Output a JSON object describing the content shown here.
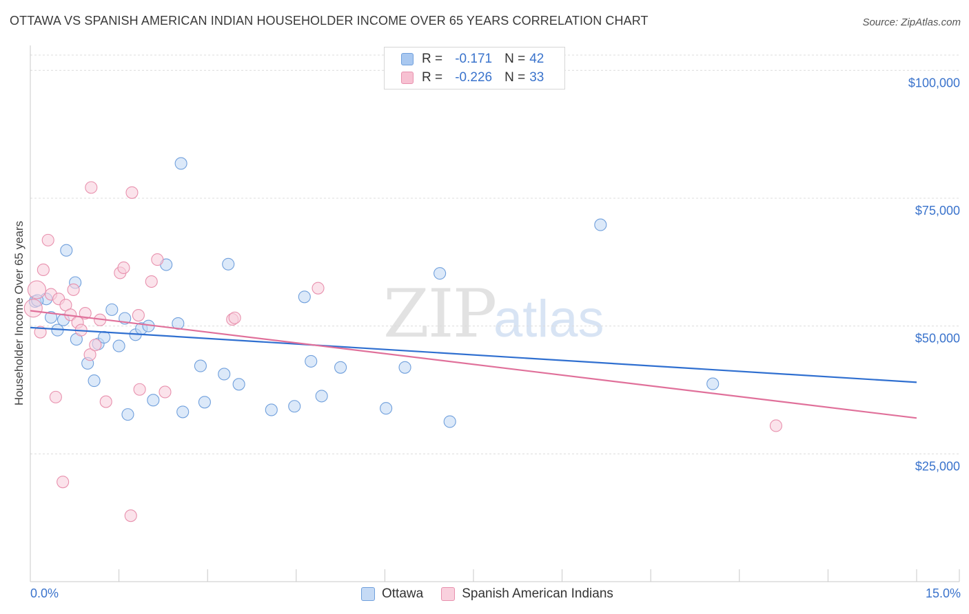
{
  "title": "OTTAWA VS SPANISH AMERICAN INDIAN HOUSEHOLDER INCOME OVER 65 YEARS CORRELATION CHART",
  "source": "Source: ZipAtlas.com",
  "watermark": {
    "zip": "ZIP",
    "atlas": "atlas"
  },
  "stats": [
    {
      "r_label": "R = ",
      "r_value": "-0.171",
      "n_label": "N = ",
      "n_value": "42",
      "color": "#a9c8f0",
      "border": "#6f9fdc"
    },
    {
      "r_label": "R = ",
      "r_value": "-0.226",
      "n_label": "N = ",
      "n_value": "33",
      "color": "#f7c1d2",
      "border": "#e890ad"
    }
  ],
  "legend": [
    {
      "label": "Ottawa",
      "color": "#c5daf5",
      "border": "#6f9fdc"
    },
    {
      "label": "Spanish American Indians",
      "color": "#f9d0dd",
      "border": "#e890ad"
    }
  ],
  "chart_data": {
    "type": "scatter",
    "title": "OTTAWA VS SPANISH AMERICAN INDIAN HOUSEHOLDER INCOME OVER 65 YEARS CORRELATION CHART",
    "xlabel": "",
    "ylabel": "Householder Income Over 65 years",
    "xlim": [
      0,
      15
    ],
    "ylim": [
      0,
      100000
    ],
    "x_tick_labels": [
      "0.0%",
      "15.0%"
    ],
    "y_ticks": [
      25000,
      50000,
      75000,
      100000
    ],
    "y_tick_labels": [
      "$25,000",
      "$50,000",
      "$75,000",
      "$100,000"
    ],
    "grid": true,
    "series": [
      {
        "name": "Ottawa",
        "color": "#6f9fdc",
        "fill": "#c5daf5",
        "trend_color": "#2f6fd0",
        "trend": {
          "x": [
            0,
            15
          ],
          "y": [
            49700,
            39000
          ]
        },
        "points": [
          {
            "x": 0.08,
            "y": 54800
          },
          {
            "x": 0.27,
            "y": 55300
          },
          {
            "x": 0.35,
            "y": 51700
          },
          {
            "x": 0.46,
            "y": 49200
          },
          {
            "x": 0.56,
            "y": 51200
          },
          {
            "x": 0.61,
            "y": 64800
          },
          {
            "x": 0.76,
            "y": 58500
          },
          {
            "x": 0.78,
            "y": 47400
          },
          {
            "x": 0.97,
            "y": 42700
          },
          {
            "x": 1.08,
            "y": 39300
          },
          {
            "x": 1.15,
            "y": 46500
          },
          {
            "x": 1.25,
            "y": 47800
          },
          {
            "x": 1.38,
            "y": 53200
          },
          {
            "x": 1.5,
            "y": 46100
          },
          {
            "x": 1.6,
            "y": 51500
          },
          {
            "x": 1.65,
            "y": 32700
          },
          {
            "x": 1.78,
            "y": 48300
          },
          {
            "x": 1.88,
            "y": 49500
          },
          {
            "x": 2.0,
            "y": 50000
          },
          {
            "x": 2.08,
            "y": 35500
          },
          {
            "x": 2.3,
            "y": 62000
          },
          {
            "x": 2.5,
            "y": 50500
          },
          {
            "x": 2.55,
            "y": 81800
          },
          {
            "x": 2.58,
            "y": 33200
          },
          {
            "x": 2.88,
            "y": 42200
          },
          {
            "x": 2.95,
            "y": 35100
          },
          {
            "x": 3.28,
            "y": 40600
          },
          {
            "x": 3.35,
            "y": 62100
          },
          {
            "x": 3.53,
            "y": 38600
          },
          {
            "x": 4.08,
            "y": 33600
          },
          {
            "x": 4.47,
            "y": 34300
          },
          {
            "x": 4.64,
            "y": 55700
          },
          {
            "x": 4.75,
            "y": 43100
          },
          {
            "x": 4.93,
            "y": 36300
          },
          {
            "x": 5.25,
            "y": 41900
          },
          {
            "x": 6.02,
            "y": 33900
          },
          {
            "x": 6.34,
            "y": 41900
          },
          {
            "x": 6.93,
            "y": 60300
          },
          {
            "x": 7.1,
            "y": 31300
          },
          {
            "x": 9.65,
            "y": 69800
          },
          {
            "x": 11.55,
            "y": 38700
          },
          {
            "x": 0.12,
            "y": 55000
          }
        ]
      },
      {
        "name": "Spanish American Indians",
        "color": "#e890ad",
        "fill": "#f9d0dd",
        "trend_color": "#e0709a",
        "trend": {
          "x": [
            0,
            15
          ],
          "y": [
            53000,
            32000
          ]
        },
        "points": [
          {
            "x": 0.05,
            "y": 53500
          },
          {
            "x": 0.11,
            "y": 57100
          },
          {
            "x": 0.17,
            "y": 48800
          },
          {
            "x": 0.22,
            "y": 61000
          },
          {
            "x": 0.3,
            "y": 66800
          },
          {
            "x": 0.35,
            "y": 56200
          },
          {
            "x": 0.43,
            "y": 36100
          },
          {
            "x": 0.48,
            "y": 55300
          },
          {
            "x": 0.55,
            "y": 19500
          },
          {
            "x": 0.6,
            "y": 54100
          },
          {
            "x": 0.68,
            "y": 52200
          },
          {
            "x": 0.73,
            "y": 57100
          },
          {
            "x": 0.8,
            "y": 50700
          },
          {
            "x": 0.86,
            "y": 49200
          },
          {
            "x": 0.93,
            "y": 52500
          },
          {
            "x": 1.01,
            "y": 44400
          },
          {
            "x": 1.03,
            "y": 77100
          },
          {
            "x": 1.1,
            "y": 46300
          },
          {
            "x": 1.18,
            "y": 51200
          },
          {
            "x": 1.28,
            "y": 35200
          },
          {
            "x": 1.52,
            "y": 60400
          },
          {
            "x": 1.58,
            "y": 61400
          },
          {
            "x": 1.7,
            "y": 12900
          },
          {
            "x": 1.72,
            "y": 76100
          },
          {
            "x": 1.83,
            "y": 52100
          },
          {
            "x": 1.85,
            "y": 37600
          },
          {
            "x": 2.05,
            "y": 58700
          },
          {
            "x": 2.15,
            "y": 63000
          },
          {
            "x": 2.28,
            "y": 37100
          },
          {
            "x": 3.42,
            "y": 51300
          },
          {
            "x": 3.46,
            "y": 51600
          },
          {
            "x": 4.87,
            "y": 57400
          },
          {
            "x": 12.62,
            "y": 30500
          }
        ]
      }
    ]
  }
}
